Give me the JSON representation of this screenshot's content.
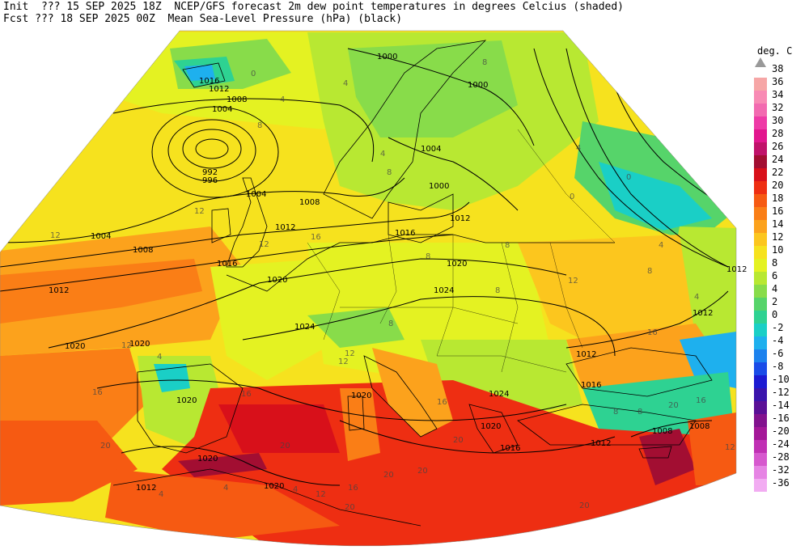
{
  "header": {
    "line1": "Init  ??? 15 SEP 2025 18Z  NCEP/GFS forecast 2m dew point temperatures in degrees Celcius (shaded)",
    "line2": "Fcst ??? 18 SEP 2025 00Z  Mean Sea-Level Pressure (hPa) (black)"
  },
  "legend": {
    "title": "deg. C",
    "top_value": "38",
    "entries": [
      {
        "label": "36",
        "color": "#f6a6a6"
      },
      {
        "label": "34",
        "color": "#f88ab4"
      },
      {
        "label": "32",
        "color": "#f26ab0"
      },
      {
        "label": "30",
        "color": "#ee3aa6"
      },
      {
        "label": "28",
        "color": "#e2168e"
      },
      {
        "label": "26",
        "color": "#c0126a"
      },
      {
        "label": "24",
        "color": "#a20e32"
      },
      {
        "label": "22",
        "color": "#d8101a"
      },
      {
        "label": "20",
        "color": "#ee2e12"
      },
      {
        "label": "18",
        "color": "#f65a12"
      },
      {
        "label": "16",
        "color": "#fa7e16"
      },
      {
        "label": "14",
        "color": "#fca21c"
      },
      {
        "label": "12",
        "color": "#fcc61e"
      },
      {
        "label": "10",
        "color": "#f6e21e"
      },
      {
        "label": "8",
        "color": "#e4f222"
      },
      {
        "label": "6",
        "color": "#b8e832"
      },
      {
        "label": "4",
        "color": "#88dc4a"
      },
      {
        "label": "2",
        "color": "#56d46a"
      },
      {
        "label": "0",
        "color": "#2ed292"
      },
      {
        "label": "-2",
        "color": "#1acfc6"
      },
      {
        "label": "-4",
        "color": "#1eb0ee"
      },
      {
        "label": "-6",
        "color": "#1c82ee"
      },
      {
        "label": "-8",
        "color": "#1a4ce8"
      },
      {
        "label": "-10",
        "color": "#1c1ad2"
      },
      {
        "label": "-12",
        "color": "#3a14ac"
      },
      {
        "label": "-14",
        "color": "#5a1096"
      },
      {
        "label": "-16",
        "color": "#82128e"
      },
      {
        "label": "-20",
        "color": "#a41898"
      },
      {
        "label": "-24",
        "color": "#c030b4"
      },
      {
        "label": "-28",
        "color": "#d658ce"
      },
      {
        "label": "-32",
        "color": "#e684e4"
      },
      {
        "label": "-36",
        "color": "#f2acf2"
      }
    ]
  },
  "map": {
    "colors": {
      "background": "#ffffff",
      "isobar": "#000000",
      "coast": "#000000"
    },
    "isobar_labels": [
      "1000",
      "1004",
      "1008",
      "1012",
      "1016",
      "1020",
      "1024",
      "992",
      "996"
    ],
    "isobar_label_list": [
      "1000",
      "1016",
      "1012",
      "1008",
      "1004",
      "992",
      "996",
      "1000",
      "1004",
      "1008",
      "1004",
      "1008",
      "1012",
      "1016",
      "1012",
      "1016",
      "1020",
      "1020",
      "1024",
      "1024",
      "1004",
      "1000",
      "1012",
      "1020",
      "1020",
      "1020",
      "1012",
      "1012",
      "1016",
      "1024",
      "1020",
      "1016",
      "1012",
      "1008",
      "1008",
      "1020",
      "1020",
      "1012"
    ],
    "dewpoint_labels": [
      "0",
      "4",
      "8",
      "4",
      "8",
      "4",
      "8",
      "0",
      "4",
      "4",
      "0",
      "12",
      "12",
      "8",
      "16",
      "12",
      "12",
      "8",
      "8",
      "8",
      "4",
      "16",
      "16",
      "12",
      "16",
      "20",
      "20",
      "20",
      "20",
      "16",
      "8",
      "8",
      "20",
      "4",
      "20",
      "4",
      "12",
      "12",
      "16",
      "20",
      "20",
      "4",
      "12",
      "16",
      "12",
      "8",
      "4"
    ]
  }
}
